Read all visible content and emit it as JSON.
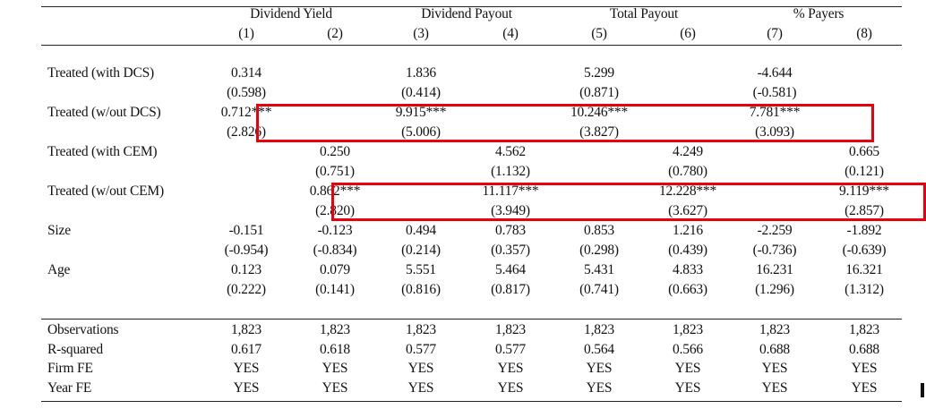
{
  "table": {
    "group_headers": [
      "Dividend Yield",
      "Dividend Payout",
      "Total Payout",
      "% Payers"
    ],
    "column_numbers": [
      "(1)",
      "(2)",
      "(3)",
      "(4)",
      "(5)",
      "(6)",
      "(7)",
      "(8)"
    ],
    "rows": [
      {
        "label": "Treated (with DCS)",
        "coef": [
          "0.314",
          "",
          "1.836",
          "",
          "5.299",
          "",
          "-4.644",
          ""
        ],
        "tstat": [
          "(0.598)",
          "",
          "(0.414)",
          "",
          "(0.871)",
          "",
          "(-0.581)",
          ""
        ]
      },
      {
        "label": "Treated (w/out DCS)",
        "coef": [
          "0.712***",
          "",
          "9.915***",
          "",
          "10.246***",
          "",
          "7.781***",
          ""
        ],
        "tstat": [
          "(2.826)",
          "",
          "(5.006)",
          "",
          "(3.827)",
          "",
          "(3.093)",
          ""
        ]
      },
      {
        "label": "Treated (with CEM)",
        "coef": [
          "",
          "0.250",
          "",
          "4.562",
          "",
          "4.249",
          "",
          "0.665"
        ],
        "tstat": [
          "",
          "(0.751)",
          "",
          "(1.132)",
          "",
          "(0.780)",
          "",
          "(0.121)"
        ]
      },
      {
        "label": "Treated (w/out CEM)",
        "coef": [
          "",
          "0.862***",
          "",
          "11.117***",
          "",
          "12.228***",
          "",
          "9.119***"
        ],
        "tstat": [
          "",
          "(2.820)",
          "",
          "(3.949)",
          "",
          "(3.627)",
          "",
          "(2.857)"
        ]
      },
      {
        "label": "Size",
        "coef": [
          "-0.151",
          "-0.123",
          "0.494",
          "0.783",
          "0.853",
          "1.216",
          "-2.259",
          "-1.892"
        ],
        "tstat": [
          "(-0.954)",
          "(-0.834)",
          "(0.214)",
          "(0.357)",
          "(0.298)",
          "(0.439)",
          "(-0.736)",
          "(-0.639)"
        ]
      },
      {
        "label": "Age",
        "coef": [
          "0.123",
          "0.079",
          "5.551",
          "5.464",
          "5.431",
          "4.833",
          "16.231",
          "16.321"
        ],
        "tstat": [
          "(0.222)",
          "(0.141)",
          "(0.816)",
          "(0.817)",
          "(0.741)",
          "(0.663)",
          "(1.296)",
          "(1.312)"
        ]
      }
    ],
    "footer_rows": [
      {
        "label": "Observations",
        "values": [
          "1,823",
          "1,823",
          "1,823",
          "1,823",
          "1,823",
          "1,823",
          "1,823",
          "1,823"
        ]
      },
      {
        "label": "R-squared",
        "values": [
          "0.617",
          "0.618",
          "0.577",
          "0.577",
          "0.564",
          "0.566",
          "0.688",
          "0.688"
        ]
      },
      {
        "label": "Firm FE",
        "values": [
          "YES",
          "YES",
          "YES",
          "YES",
          "YES",
          "YES",
          "YES",
          "YES"
        ]
      },
      {
        "label": "Year FE",
        "values": [
          "YES",
          "YES",
          "YES",
          "YES",
          "YES",
          "YES",
          "YES",
          "YES"
        ]
      }
    ]
  },
  "highlight_color": "#e8000d"
}
